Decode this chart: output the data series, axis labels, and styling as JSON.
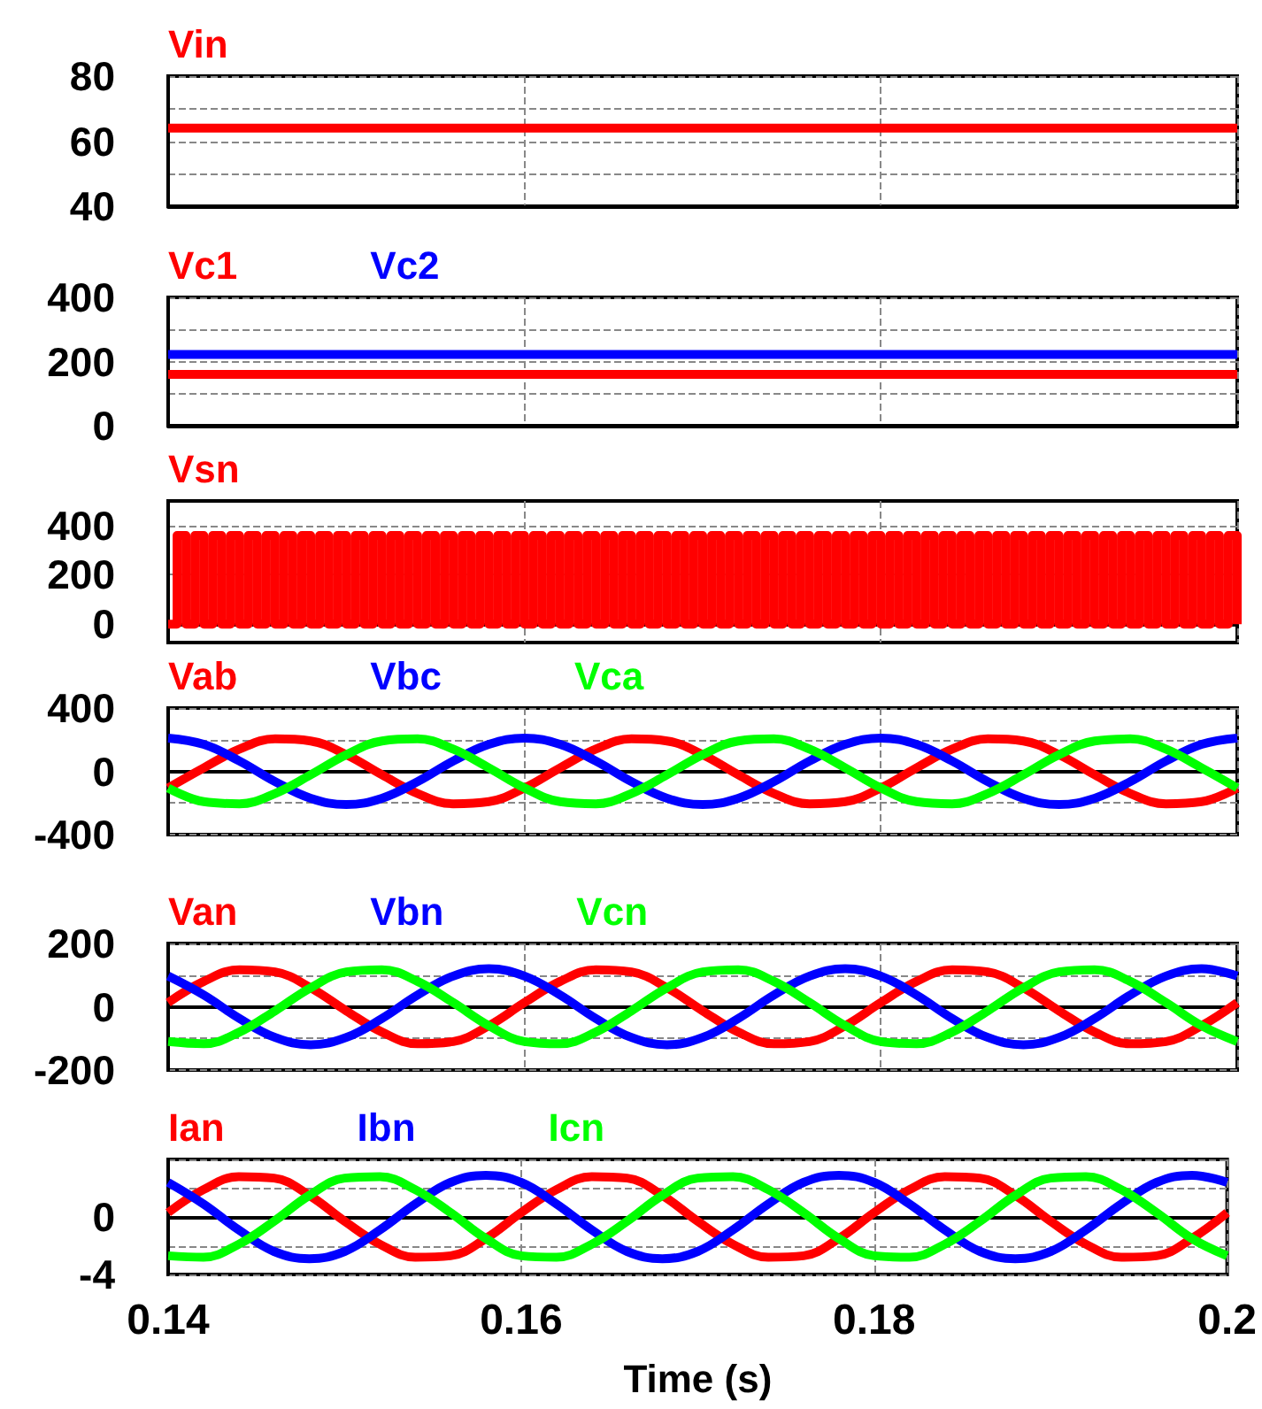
{
  "chart_data": [
    {
      "type": "line",
      "xlim": [
        0.14,
        0.2
      ],
      "xticks": [
        0.14,
        0.16,
        0.18,
        0.2
      ],
      "ylim": [
        40,
        80
      ],
      "yticks": [
        40,
        {
          "value": 50,
          "label": null
        },
        60,
        {
          "value": 70,
          "label": null
        },
        80
      ],
      "grid": true,
      "legend": "top left",
      "tick_labels": "y",
      "x": [
        0.14,
        0.2
      ],
      "series": [
        {
          "name": "Vin",
          "color": "#ff0000",
          "values": [
            64,
            64
          ]
        }
      ]
    },
    {
      "type": "line",
      "xlim": [
        0.14,
        0.2
      ],
      "xticks": [
        0.14,
        0.16,
        0.18,
        0.2
      ],
      "ylim": [
        0,
        400
      ],
      "yticks": [
        0,
        {
          "value": 100,
          "label": null
        },
        200,
        {
          "value": 300,
          "label": null
        },
        400
      ],
      "grid": true,
      "legend": "top left",
      "tick_labels": "y",
      "x": [
        0.14,
        0.2
      ],
      "series": [
        {
          "name": "Vc1",
          "color": "#ff0000",
          "values": [
            160,
            160
          ]
        },
        {
          "name": "Vc2",
          "color": "#0000ff",
          "values": [
            222,
            222
          ]
        }
      ]
    },
    {
      "type": "step",
      "xlim": [
        0.14,
        0.2
      ],
      "xticks": [
        0.14,
        0.16,
        0.18,
        0.2
      ],
      "ylim": [
        -75,
        500
      ],
      "yticks": [
        0,
        200,
        400
      ],
      "grid": true,
      "legend": "top left",
      "tick_labels": "y",
      "x": [
        0.14,
        0.1405,
        0.141,
        0.1415,
        0.142,
        0.1425,
        0.143,
        0.1435,
        0.144,
        0.1445,
        0.145,
        0.1455,
        0.146,
        0.1465,
        0.147,
        0.1475,
        0.148,
        0.1485,
        0.149,
        0.1495,
        0.15,
        0.1505,
        0.151,
        0.1515,
        0.152,
        0.1525,
        0.153,
        0.1535,
        0.154,
        0.1545,
        0.155,
        0.1555,
        0.156,
        0.1565,
        0.157,
        0.1575,
        0.158,
        0.1585,
        0.159,
        0.1595,
        0.16,
        0.1605,
        0.161,
        0.1615,
        0.162,
        0.1625,
        0.163,
        0.1635,
        0.164,
        0.1645,
        0.165,
        0.1655,
        0.166,
        0.1665,
        0.167,
        0.1675,
        0.168,
        0.1685,
        0.169,
        0.1695,
        0.17,
        0.1705,
        0.171,
        0.1715,
        0.172,
        0.1725,
        0.173,
        0.1735,
        0.174,
        0.1745,
        0.175,
        0.1755,
        0.176,
        0.1765,
        0.177,
        0.1775,
        0.178,
        0.1785,
        0.179,
        0.1795,
        0.18,
        0.1805,
        0.181,
        0.1815,
        0.182,
        0.1825,
        0.183,
        0.1835,
        0.184,
        0.1845,
        0.185,
        0.1855,
        0.186,
        0.1865,
        0.187,
        0.1875,
        0.188,
        0.1885,
        0.189,
        0.1895,
        0.19,
        0.1905,
        0.191,
        0.1915,
        0.192,
        0.1925,
        0.193,
        0.1935,
        0.194,
        0.1945,
        0.195,
        0.1955,
        0.196,
        0.1965,
        0.197,
        0.1975,
        0.198,
        0.1985,
        0.199,
        0.1995,
        0.2
      ],
      "series": [
        {
          "name": "Vsn",
          "color": "#ff0000",
          "values": [
            0,
            360,
            0,
            360,
            0,
            360,
            0,
            360,
            0,
            360,
            0,
            360,
            0,
            360,
            0,
            360,
            0,
            360,
            0,
            360,
            0,
            360,
            0,
            360,
            0,
            360,
            0,
            360,
            0,
            360,
            0,
            360,
            0,
            360,
            0,
            360,
            0,
            360,
            0,
            360,
            0,
            360,
            0,
            360,
            0,
            360,
            0,
            360,
            0,
            360,
            0,
            360,
            0,
            360,
            0,
            360,
            0,
            360,
            0,
            360,
            0,
            360,
            0,
            360,
            0,
            360,
            0,
            360,
            0,
            360,
            0,
            360,
            0,
            360,
            0,
            360,
            0,
            360,
            0,
            360,
            0,
            360,
            0,
            360,
            0,
            360,
            0,
            360,
            0,
            360,
            0,
            360,
            0,
            360,
            0,
            360,
            0,
            360,
            0,
            360,
            0,
            360,
            0,
            360,
            0,
            360,
            0,
            360,
            0,
            360,
            0,
            360,
            0,
            360,
            0,
            360,
            0,
            360,
            0,
            360,
            0
          ]
        }
      ]
    },
    {
      "type": "line",
      "xlim": [
        0.14,
        0.2
      ],
      "xticks": [
        0.14,
        0.16,
        0.18,
        0.2
      ],
      "ylim": [
        -400,
        400
      ],
      "yticks": [
        -400,
        {
          "value": -200,
          "label": null
        },
        0,
        {
          "value": 200,
          "label": null
        },
        400
      ],
      "grid": true,
      "legend": "top left",
      "tick_labels": "y",
      "x": [
        0.14,
        0.142,
        0.144,
        0.146,
        0.148,
        0.15,
        0.152,
        0.154,
        0.156,
        0.158,
        0.16,
        0.162,
        0.164,
        0.166,
        0.168,
        0.17,
        0.172,
        0.174,
        0.176,
        0.178,
        0.18,
        0.182,
        0.184,
        0.186,
        0.188,
        0.19,
        0.192,
        0.194,
        0.196,
        0.198,
        0.2
      ],
      "series": [
        {
          "name": "Vab",
          "color": "#ff0000",
          "values": [
            -105,
            22,
            140,
            205,
            192,
            105,
            -22,
            -140,
            -205,
            -192,
            -105,
            22,
            140,
            205,
            192,
            105,
            -22,
            -140,
            -205,
            -192,
            -105,
            22,
            140,
            205,
            192,
            105,
            -22,
            -140,
            -205,
            -192,
            -105
          ]
        },
        {
          "name": "Vbc",
          "color": "#0000ff",
          "values": [
            210,
            170,
            65,
            -65,
            -170,
            -210,
            -170,
            -65,
            65,
            170,
            210,
            170,
            65,
            -65,
            -170,
            -210,
            -170,
            -65,
            65,
            170,
            210,
            170,
            65,
            -65,
            -170,
            -210,
            -170,
            -65,
            65,
            170,
            210
          ]
        },
        {
          "name": "Vca",
          "color": "#00ff00",
          "values": [
            -105,
            -192,
            -205,
            -140,
            -22,
            105,
            192,
            205,
            140,
            22,
            -105,
            -192,
            -205,
            -140,
            -22,
            105,
            192,
            205,
            140,
            22,
            -105,
            -192,
            -205,
            -140,
            -22,
            105,
            192,
            205,
            140,
            22,
            -105
          ]
        }
      ]
    },
    {
      "type": "line",
      "xlim": [
        0.14,
        0.2
      ],
      "xticks": [
        0.14,
        0.16,
        0.18,
        0.2
      ],
      "ylim": [
        -200,
        200
      ],
      "yticks": [
        -200,
        {
          "value": -100,
          "label": null
        },
        0,
        {
          "value": 100,
          "label": null
        },
        200
      ],
      "grid": true,
      "legend": "top left",
      "tick_labels": "y",
      "x": [
        0.14,
        0.142,
        0.144,
        0.146,
        0.148,
        0.15,
        0.152,
        0.154,
        0.156,
        0.158,
        0.16,
        0.162,
        0.164,
        0.166,
        0.168,
        0.17,
        0.172,
        0.174,
        0.176,
        0.178,
        0.18,
        0.182,
        0.184,
        0.186,
        0.188,
        0.19,
        0.192,
        0.194,
        0.196,
        0.198,
        0.2
      ],
      "series": [
        {
          "name": "Van",
          "color": "#ff0000",
          "values": [
            13,
            80,
            117,
            110,
            60,
            -13,
            -80,
            -117,
            -110,
            -60,
            13,
            80,
            117,
            110,
            60,
            -13,
            -80,
            -117,
            -110,
            -60,
            13,
            80,
            117,
            110,
            60,
            -13,
            -80,
            -117,
            -110,
            -60,
            13
          ]
        },
        {
          "name": "Vbn",
          "color": "#0000ff",
          "values": [
            97,
            37,
            -37,
            -97,
            -120,
            -97,
            -37,
            37,
            97,
            120,
            97,
            37,
            -37,
            -97,
            -120,
            -97,
            -37,
            37,
            97,
            120,
            97,
            37,
            -37,
            -97,
            -120,
            -97,
            -37,
            37,
            97,
            120,
            97
          ]
        },
        {
          "name": "Vcn",
          "color": "#00ff00",
          "values": [
            -110,
            -117,
            -80,
            -13,
            60,
            110,
            117,
            80,
            13,
            -60,
            -110,
            -117,
            -80,
            -13,
            60,
            110,
            117,
            80,
            13,
            -60,
            -110,
            -117,
            -80,
            -13,
            60,
            110,
            117,
            80,
            13,
            -60,
            -110
          ]
        }
      ]
    },
    {
      "type": "line",
      "xlim": [
        0.14,
        0.2
      ],
      "xticks": [
        0.14,
        0.16,
        0.18,
        0.2
      ],
      "ylim": [
        -4,
        4
      ],
      "yticks": [
        -4,
        {
          "value": -2,
          "label": null
        },
        0,
        {
          "value": 2,
          "label": null
        },
        {
          "value": 4,
          "label": null
        }
      ],
      "grid": true,
      "legend": "top left",
      "xlabel": "Time (s)",
      "x": [
        0.14,
        0.142,
        0.144,
        0.146,
        0.148,
        0.15,
        0.152,
        0.154,
        0.156,
        0.158,
        0.16,
        0.162,
        0.164,
        0.166,
        0.168,
        0.17,
        0.172,
        0.174,
        0.176,
        0.178,
        0.18,
        0.182,
        0.184,
        0.186,
        0.188,
        0.19,
        0.192,
        0.194,
        0.196,
        0.198,
        0.2
      ],
      "series": [
        {
          "name": "Ian",
          "color": "#ff0000",
          "values": [
            0.3,
            1.9,
            2.8,
            2.7,
            1.5,
            -0.3,
            -1.9,
            -2.8,
            -2.7,
            -1.5,
            0.3,
            1.9,
            2.8,
            2.7,
            1.5,
            -0.3,
            -1.9,
            -2.8,
            -2.7,
            -1.5,
            0.3,
            1.9,
            2.8,
            2.7,
            1.5,
            -0.3,
            -1.9,
            -2.8,
            -2.7,
            -1.5,
            0.3
          ]
        },
        {
          "name": "Ibn",
          "color": "#0000ff",
          "values": [
            2.4,
            0.9,
            -0.9,
            -2.4,
            -2.9,
            -2.4,
            -0.9,
            0.9,
            2.4,
            2.9,
            2.4,
            0.9,
            -0.9,
            -2.4,
            -2.9,
            -2.4,
            -0.9,
            0.9,
            2.4,
            2.9,
            2.4,
            0.9,
            -0.9,
            -2.4,
            -2.9,
            -2.4,
            -0.9,
            0.9,
            2.4,
            2.9,
            2.4
          ]
        },
        {
          "name": "Icn",
          "color": "#00ff00",
          "values": [
            -2.7,
            -2.8,
            -1.9,
            -0.3,
            1.5,
            2.7,
            2.8,
            1.9,
            0.3,
            -1.5,
            -2.7,
            -2.8,
            -1.9,
            -0.3,
            1.5,
            2.7,
            2.8,
            1.9,
            0.3,
            -1.5,
            -2.7,
            -2.8,
            -1.9,
            -0.3,
            1.5,
            2.7,
            2.8,
            1.9,
            0.3,
            -1.5,
            -2.7
          ]
        }
      ]
    }
  ]
}
